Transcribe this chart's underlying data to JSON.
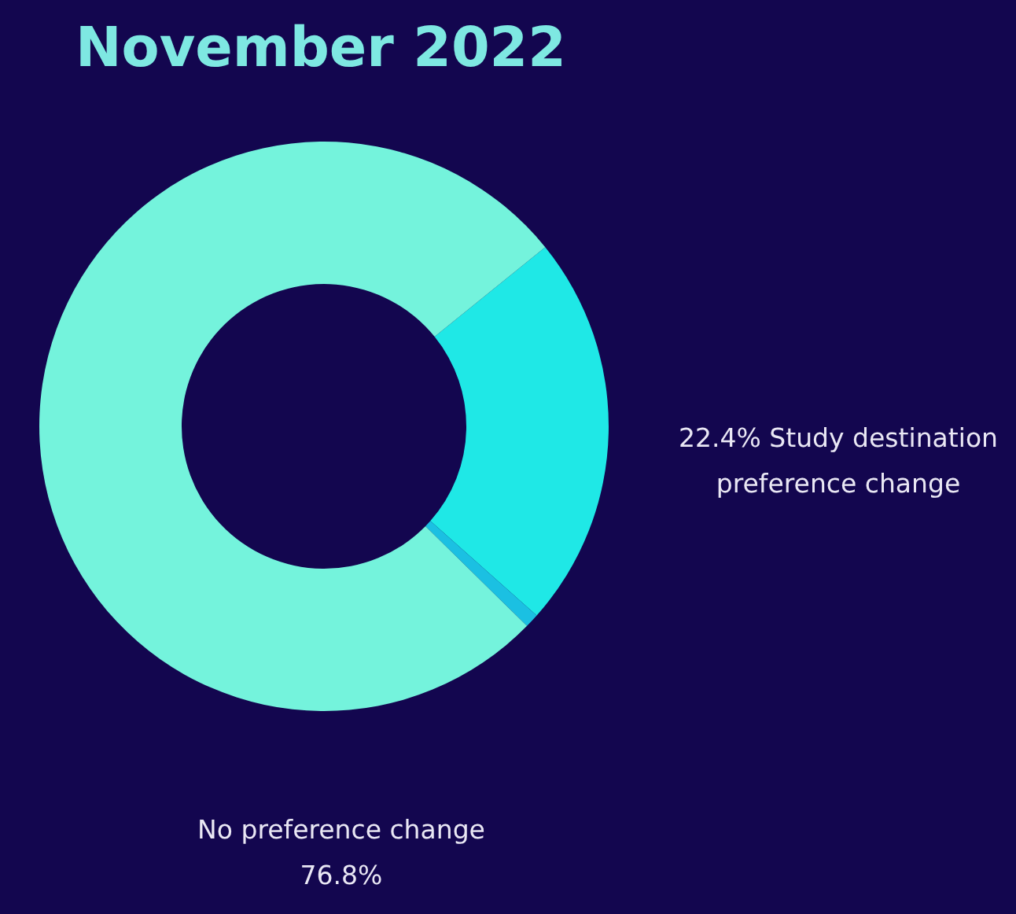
{
  "chart_data": {
    "type": "donut",
    "title": "November 2022",
    "categories": [
      "Study destination preference change",
      null,
      "No preference change"
    ],
    "values": [
      22.4,
      0.8,
      76.8
    ],
    "colors": [
      "#1fe8e6",
      "#1bc0e2",
      "#74f3dc"
    ],
    "value_labels": [
      "22.4%",
      null,
      "76.8%"
    ]
  }
}
